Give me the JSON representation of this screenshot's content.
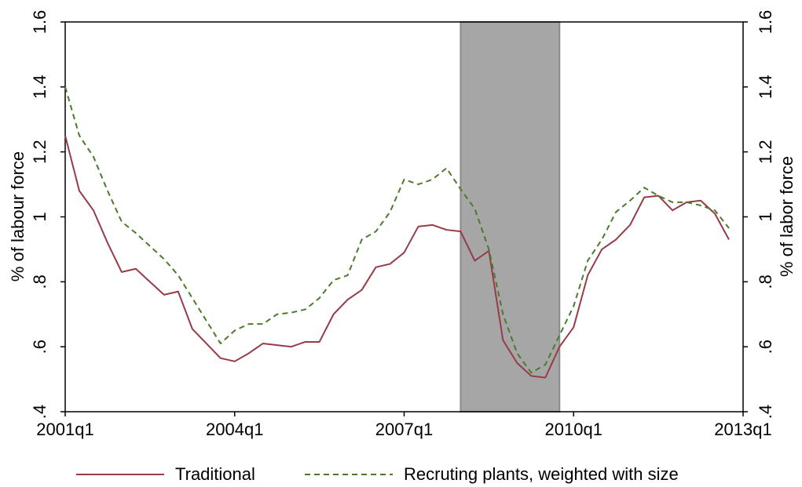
{
  "chart_data": {
    "type": "line",
    "x": [
      "2001q1",
      "2001q2",
      "2001q3",
      "2001q4",
      "2002q1",
      "2002q2",
      "2002q3",
      "2002q4",
      "2003q1",
      "2003q2",
      "2003q3",
      "2003q4",
      "2004q1",
      "2004q2",
      "2004q3",
      "2004q4",
      "2005q1",
      "2005q2",
      "2005q3",
      "2005q4",
      "2006q1",
      "2006q2",
      "2006q3",
      "2006q4",
      "2007q1",
      "2007q2",
      "2007q3",
      "2007q4",
      "2008q1",
      "2008q2",
      "2008q3",
      "2008q4",
      "2009q1",
      "2009q2",
      "2009q3",
      "2009q4",
      "2010q1",
      "2010q2",
      "2010q3",
      "2010q4",
      "2011q1",
      "2011q2",
      "2011q3",
      "2011q4",
      "2012q1",
      "2012q2",
      "2012q3",
      "2012q4"
    ],
    "series": [
      {
        "name": "Traditional",
        "color": "#973b46",
        "dashed": false,
        "values": [
          1.25,
          1.08,
          1.02,
          0.92,
          0.83,
          0.84,
          0.8,
          0.76,
          0.77,
          0.655,
          0.61,
          0.565,
          0.555,
          0.58,
          0.61,
          0.605,
          0.6,
          0.615,
          0.615,
          0.7,
          0.745,
          0.775,
          0.845,
          0.855,
          0.89,
          0.97,
          0.975,
          0.96,
          0.955,
          0.865,
          0.895,
          0.62,
          0.55,
          0.51,
          0.505,
          0.6,
          0.66,
          0.82,
          0.9,
          0.93,
          0.975,
          1.06,
          1.065,
          1.02,
          1.045,
          1.05,
          1.01,
          0.93
        ]
      },
      {
        "name": "Recruting plants, weighted with size",
        "color": "#4a7b2a",
        "dashed": true,
        "values": [
          1.4,
          1.25,
          1.185,
          1.08,
          0.985,
          0.95,
          0.91,
          0.87,
          0.82,
          0.75,
          0.68,
          0.61,
          0.65,
          0.67,
          0.67,
          0.7,
          0.705,
          0.715,
          0.75,
          0.805,
          0.82,
          0.93,
          0.955,
          1.015,
          1.115,
          1.1,
          1.115,
          1.15,
          1.085,
          1.025,
          0.9,
          0.7,
          0.58,
          0.52,
          0.545,
          0.635,
          0.725,
          0.865,
          0.93,
          1.015,
          1.05,
          1.09,
          1.065,
          1.045,
          1.045,
          1.035,
          1.02,
          0.965
        ]
      }
    ],
    "xlim": [
      "2001q1",
      "2013q1"
    ],
    "xticks": [
      "2001q1",
      "2004q1",
      "2007q1",
      "2010q1",
      "2013q1"
    ],
    "ylim": [
      0.4,
      1.6
    ],
    "yticks": [
      {
        "value": 0.4,
        "label": ".4"
      },
      {
        "value": 0.6,
        "label": ".6"
      },
      {
        "value": 0.8,
        "label": ".8"
      },
      1,
      1.2,
      1.4,
      1.6
    ],
    "y2lim": [
      0.4,
      1.6
    ],
    "y2ticks": [
      {
        "value": 0.4,
        "label": ".4"
      },
      {
        "value": 0.6,
        "label": ".6"
      },
      {
        "value": 0.8,
        "label": ".8"
      },
      1,
      1.2,
      1.4,
      1.6
    ],
    "ylabel": "% of labour force",
    "y2label": "% of labor force",
    "shaded_period": [
      "2008q1",
      "2009q4"
    ],
    "shade_color": "#a6a6a6",
    "legend": "bottom"
  }
}
